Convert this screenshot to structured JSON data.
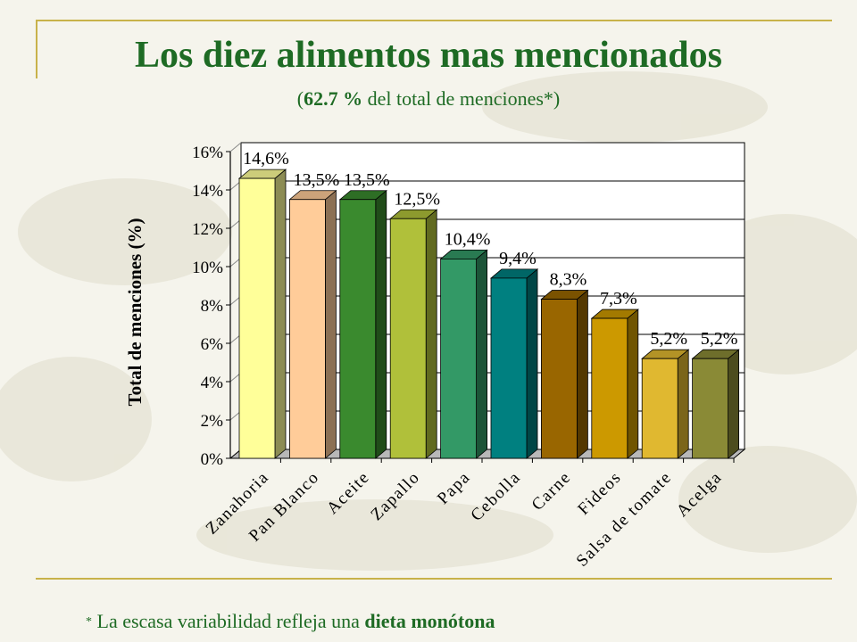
{
  "slide": {
    "title": "Los diez alimentos mas mencionados",
    "subtitle_open": "(",
    "subtitle_bold": "62.7 %",
    "subtitle_rest": " del total de menciones*)",
    "footnote_star": "*",
    "footnote_text": " La escasa variabilidad refleja una ",
    "footnote_bold": "dieta monótona"
  },
  "chart_data": {
    "type": "bar",
    "title": "",
    "xlabel": "",
    "ylabel": "Total de menciones (%)",
    "ylim": [
      0,
      16
    ],
    "yticks": [
      "0%",
      "2%",
      "4%",
      "6%",
      "8%",
      "10%",
      "12%",
      "14%",
      "16%"
    ],
    "grid": true,
    "categories": [
      "Zanahoria",
      "Pan Blanco",
      "Aceite",
      "Zapallo",
      "Papa",
      "Cebolla",
      "Carne",
      "Fideos",
      "Salsa de tomate",
      "Acelga"
    ],
    "values": [
      14.6,
      13.5,
      13.5,
      12.5,
      10.4,
      9.4,
      8.3,
      7.3,
      5.2,
      5.2
    ],
    "labels": [
      "14,6%",
      "13,5%",
      "13,5%",
      "12,5%",
      "10,4%",
      "9,4%",
      "8,3%",
      "7,3%",
      "5,2%",
      "5,2%"
    ],
    "colors": [
      "#ffff99",
      "#ffcc99",
      "#3a8a2e",
      "#b0c03a",
      "#339966",
      "#008080",
      "#996600",
      "#cc9900",
      "#e0b830",
      "#8a8a36"
    ]
  }
}
